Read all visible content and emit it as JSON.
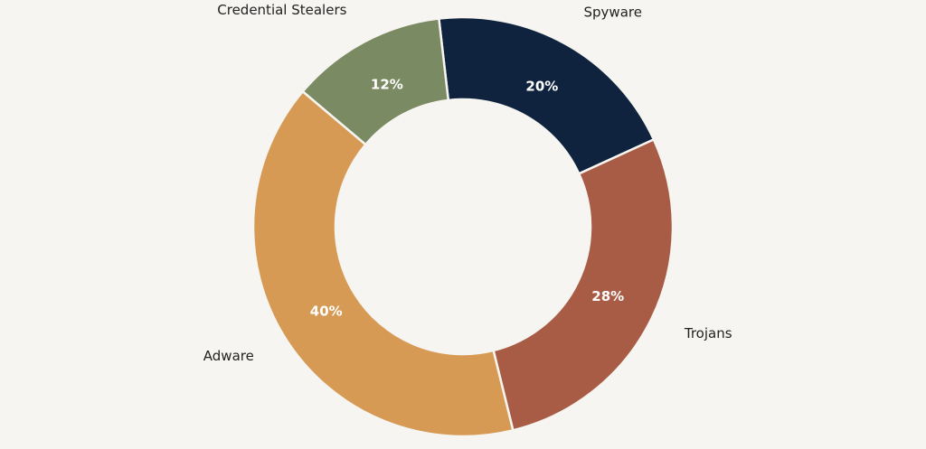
{
  "chart_data": {
    "type": "donut",
    "categories": [
      "Spyware",
      "Trojans",
      "Adware",
      "Credential Stealers"
    ],
    "values": [
      20,
      28,
      40,
      12
    ],
    "value_labels": [
      "20%",
      "28%",
      "40%",
      "12%"
    ],
    "colors": [
      "#0f233f",
      "#a95c45",
      "#d79a54",
      "#7a8a62"
    ]
  }
}
